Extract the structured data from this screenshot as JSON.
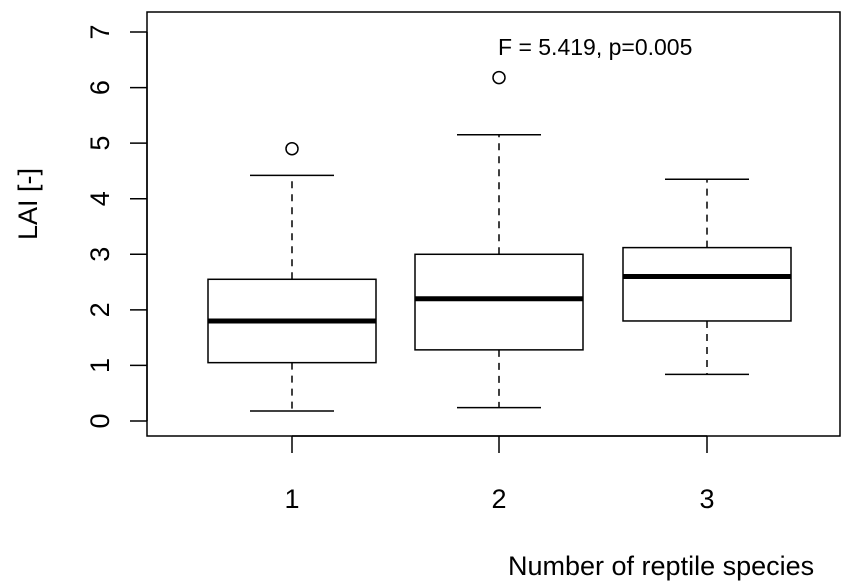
{
  "chart_data": {
    "type": "box",
    "title": "",
    "xlabel": "Number of reptile species",
    "ylabel": "LAI [-]",
    "annotation": "F = 5.419, p=0.005",
    "ylim": [
      0,
      7
    ],
    "yticks": [
      "0",
      "1",
      "2",
      "3",
      "4",
      "5",
      "6",
      "7"
    ],
    "categories": [
      "1",
      "2",
      "3"
    ],
    "boxes": [
      {
        "category": "1",
        "whisker_low": 0.18,
        "q1": 1.05,
        "median": 1.8,
        "q3": 2.55,
        "whisker_high": 4.42,
        "outliers": [
          4.9
        ]
      },
      {
        "category": "2",
        "whisker_low": 0.24,
        "q1": 1.28,
        "median": 2.2,
        "q3": 3.0,
        "whisker_high": 5.15,
        "outliers": [
          6.18
        ]
      },
      {
        "category": "3",
        "whisker_low": 0.84,
        "q1": 1.8,
        "median": 2.6,
        "q3": 3.12,
        "whisker_high": 4.35,
        "outliers": []
      }
    ],
    "grid": false
  }
}
